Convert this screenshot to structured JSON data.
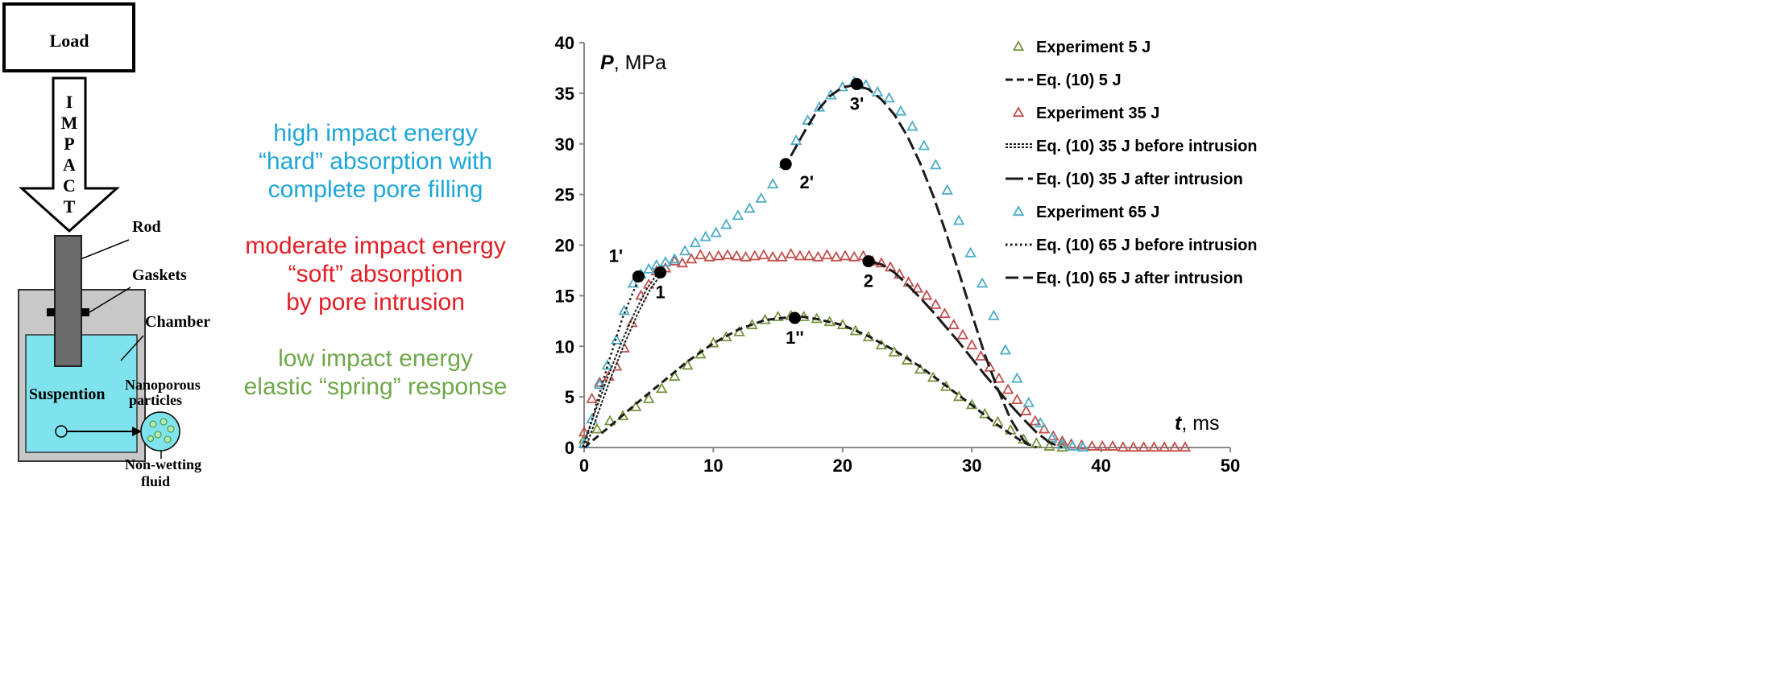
{
  "schematic": {
    "load_label": "Load",
    "impact_letters": [
      "I",
      "M",
      "P",
      "A",
      "C",
      "T"
    ],
    "rod_label": "Rod",
    "gaskets_label": "Gaskets",
    "chamber_label": "Chamber",
    "suspension_label": "Suspention",
    "nanoporous_label_1": "Nanoporous",
    "nanoporous_label_2": "particles",
    "fluid_label_1": "Non-wetting",
    "fluid_label_2": "fluid"
  },
  "regimes": {
    "high": {
      "color": "#1fa6d8",
      "lines": [
        "high impact energy",
        "“hard” absorption with",
        "complete pore filling"
      ]
    },
    "moderate": {
      "color": "#e31e24",
      "lines": [
        "moderate impact energy",
        "“soft” absorption",
        "by pore intrusion"
      ]
    },
    "low": {
      "color": "#6fa84a",
      "lines": [
        "low impact energy",
        "elastic “spring” response"
      ]
    }
  },
  "chart_data": {
    "type": "scatter",
    "ylabel_italic": "P",
    "ylabel_unit": ", MPa",
    "xlabel_italic": "t",
    "xlabel_unit": ", ms",
    "xlim": [
      0,
      50
    ],
    "ylim": [
      0,
      40
    ],
    "xticks": [
      0,
      10,
      20,
      30,
      40,
      50
    ],
    "yticks": [
      0,
      5,
      10,
      15,
      20,
      25,
      30,
      35,
      40
    ],
    "grid": false,
    "legend_position": "top-right",
    "series": [
      {
        "name": "Experiment 5 J",
        "kind": "markers",
        "color": "#77933c",
        "x": [
          0,
          1,
          2,
          3,
          4,
          5,
          6,
          7,
          8,
          9,
          10,
          11,
          12,
          13,
          14,
          15,
          16,
          17,
          18,
          19,
          20,
          21,
          22,
          23,
          24,
          25,
          26,
          27,
          28,
          29,
          30,
          31,
          32,
          33,
          34,
          35,
          36,
          37
        ],
        "y": [
          0.8,
          1.8,
          2.6,
          3.1,
          4.0,
          4.8,
          5.8,
          7.0,
          8.1,
          9.2,
          10.3,
          10.9,
          11.4,
          12.1,
          12.6,
          12.9,
          13.0,
          12.9,
          12.7,
          12.4,
          12.1,
          11.5,
          10.9,
          10.1,
          9.4,
          8.6,
          7.7,
          6.9,
          6.0,
          5.0,
          4.2,
          3.3,
          2.5,
          1.7,
          0.8,
          0.4,
          0.1,
          0.0
        ]
      },
      {
        "name": "Eq. (10) 5 J",
        "kind": "line",
        "dash": "short",
        "color": "#1a1a1a",
        "x": [
          0,
          2,
          4,
          6,
          8,
          10,
          12,
          14,
          16,
          17,
          18,
          20,
          22,
          24,
          26,
          28,
          30,
          32,
          34,
          35
        ],
        "y": [
          0.0,
          2.1,
          4.3,
          6.4,
          8.5,
          10.3,
          11.7,
          12.6,
          12.9,
          12.9,
          12.7,
          12.1,
          11.0,
          9.6,
          8.0,
          6.1,
          4.2,
          2.2,
          0.5,
          0.0
        ]
      },
      {
        "name": "Experiment 35 J",
        "kind": "markers",
        "color": "#c0504d",
        "x": [
          0,
          0.6,
          1.2,
          1.9,
          2.5,
          3.1,
          3.7,
          4.4,
          5,
          5.6,
          6.3,
          7,
          7.6,
          8.3,
          9,
          9.7,
          10.4,
          11.1,
          11.8,
          12.5,
          13.2,
          13.9,
          14.6,
          15.3,
          16,
          16.7,
          17.4,
          18.1,
          18.8,
          19.5,
          20.2,
          20.9,
          21.6,
          22.3,
          23,
          23.7,
          24.4,
          25.1,
          25.8,
          26.5,
          27.2,
          27.9,
          28.6,
          29.3,
          30,
          30.7,
          31.4,
          32.1,
          32.8,
          33.5,
          34.2,
          34.9,
          35.6,
          36.3,
          37,
          37.7,
          38.5,
          39.3,
          40.1,
          40.9,
          41.7,
          42.5,
          43.3,
          44.1,
          44.9,
          45.7,
          46.5
        ],
        "y": [
          1.5,
          4.8,
          6.4,
          7.0,
          8.0,
          9.8,
          12.3,
          15.0,
          16.1,
          17.4,
          17.7,
          18.4,
          18.2,
          18.6,
          19.0,
          18.8,
          18.9,
          19.0,
          18.9,
          18.8,
          18.9,
          19.0,
          18.8,
          18.8,
          19.1,
          18.9,
          18.9,
          18.8,
          19.0,
          18.8,
          18.9,
          18.8,
          18.9,
          18.4,
          18.2,
          17.8,
          17.1,
          16.3,
          15.7,
          15.0,
          14.1,
          13.2,
          12.1,
          11.1,
          10.1,
          9.0,
          7.9,
          6.8,
          5.7,
          4.7,
          3.6,
          2.6,
          1.8,
          1.1,
          0.6,
          0.3,
          0.2,
          0.1,
          0.1,
          0.1,
          0.0,
          0.0,
          0.0,
          0.0,
          0.0,
          0.0,
          0.0
        ]
      },
      {
        "name": "Eq. (10) 35 J before intrusion",
        "kind": "line",
        "dash": "double",
        "color": "#1a1a1a",
        "x": [
          0,
          1,
          2,
          3,
          4,
          5,
          5.9
        ],
        "y": [
          0.0,
          3.6,
          7.1,
          10.3,
          13.2,
          15.7,
          17.3
        ]
      },
      {
        "name": "Eq. (10) 35 J after intrusion",
        "kind": "line",
        "dash": "long",
        "color": "#1a1a1a",
        "x": [
          22,
          23,
          24,
          25,
          26,
          27,
          28,
          29,
          30,
          31,
          32,
          33,
          34,
          35,
          36,
          37
        ],
        "y": [
          18.4,
          18.1,
          17.3,
          16.1,
          14.8,
          13.4,
          11.9,
          10.4,
          8.8,
          7.2,
          5.7,
          4.2,
          2.8,
          1.5,
          0.5,
          0.0
        ]
      },
      {
        "name": "Experiment 65 J",
        "kind": "markers",
        "color": "#4bacc6",
        "x": [
          0,
          0.6,
          1.2,
          1.8,
          2.5,
          3.1,
          3.8,
          4.4,
          5,
          5.6,
          6.3,
          7,
          7.8,
          8.6,
          9.4,
          10.2,
          11,
          11.9,
          12.8,
          13.7,
          14.6,
          15.5,
          16.4,
          17.3,
          18.2,
          19.1,
          20,
          20.9,
          21.8,
          22.7,
          23.6,
          24.5,
          25.4,
          26.3,
          27.2,
          28.1,
          29,
          29.9,
          30.8,
          31.7,
          32.6,
          33.5,
          34.4,
          35.3,
          36.2,
          37,
          37.8,
          38.6
        ],
        "y": [
          0.4,
          2.8,
          6.2,
          8.1,
          10.6,
          13.5,
          16.2,
          17.1,
          17.6,
          18.0,
          18.3,
          18.6,
          19.4,
          20.2,
          20.8,
          21.2,
          22.0,
          22.9,
          23.6,
          24.6,
          26.0,
          28.0,
          30.3,
          32.3,
          33.6,
          34.8,
          35.6,
          36.1,
          35.8,
          35.1,
          34.5,
          33.2,
          31.7,
          29.8,
          27.9,
          25.4,
          22.4,
          19.2,
          16.2,
          13.0,
          9.6,
          6.8,
          4.4,
          2.4,
          0.9,
          0.3,
          0.1,
          0.0
        ]
      },
      {
        "name": "Eq. (10) 65 J before intrusion",
        "kind": "line",
        "dash": "dot",
        "color": "#1a1a1a",
        "x": [
          0,
          1,
          2,
          3,
          4,
          4.4
        ],
        "y": [
          0.0,
          4.5,
          8.9,
          12.9,
          16.0,
          17.0
        ]
      },
      {
        "name": "Eq. (10) 65 J after intrusion",
        "kind": "line",
        "dash": "medium",
        "color": "#1a1a1a",
        "x": [
          16,
          17,
          18,
          19,
          20,
          21,
          22,
          23,
          24,
          25,
          26,
          27,
          28,
          29,
          30,
          31,
          32,
          33,
          34,
          34.6
        ],
        "y": [
          28.8,
          31.1,
          33.2,
          34.7,
          35.6,
          35.8,
          35.4,
          34.4,
          32.9,
          30.8,
          28.1,
          24.9,
          21.2,
          17.3,
          13.2,
          9.2,
          5.8,
          2.8,
          0.7,
          0.0
        ]
      }
    ],
    "points": [
      {
        "label": "1'",
        "x": 4.2,
        "y": 16.9,
        "label_pos": "upper-left"
      },
      {
        "label": "1",
        "x": 5.9,
        "y": 17.3,
        "label_pos": "below"
      },
      {
        "label": "2",
        "x": 22.0,
        "y": 18.4,
        "label_pos": "below"
      },
      {
        "label": "2'",
        "x": 15.6,
        "y": 28.0,
        "label_pos": "lower-right"
      },
      {
        "label": "3'",
        "x": 21.1,
        "y": 35.9,
        "label_pos": "below"
      },
      {
        "label": "1''",
        "x": 16.3,
        "y": 12.8,
        "label_pos": "below"
      }
    ]
  }
}
